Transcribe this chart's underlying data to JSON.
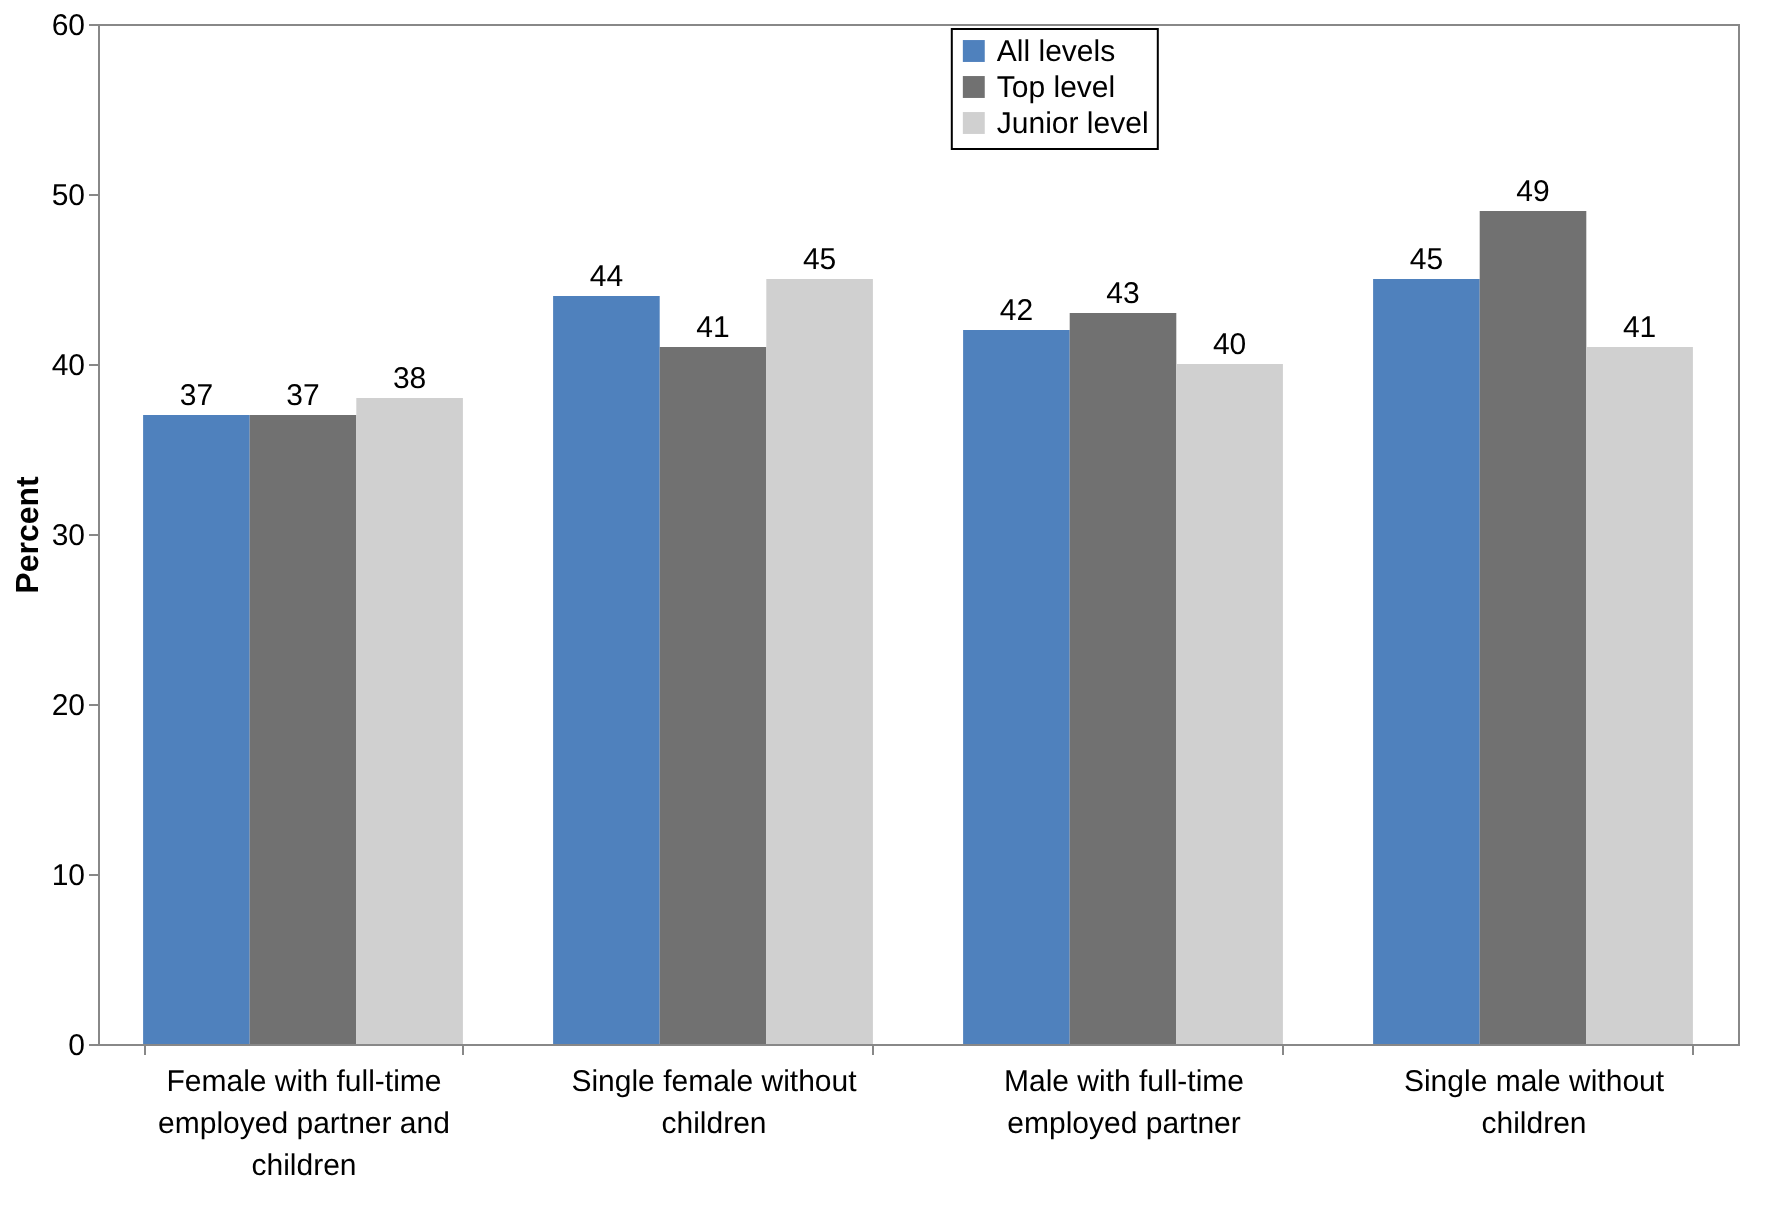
{
  "chart_data": {
    "type": "bar",
    "ylabel": "Percent",
    "categories": [
      "Female with full-time employed partner and children",
      "Single female without children",
      "Male with full-time employed partner",
      "Single male without children"
    ],
    "series": [
      {
        "name": "All levels",
        "color": "#4f81bd",
        "values": [
          37,
          44,
          42,
          45
        ]
      },
      {
        "name": "Top level",
        "color": "#717171",
        "values": [
          37,
          41,
          43,
          49
        ]
      },
      {
        "name": "Junior level",
        "color": "#d0d0d0",
        "values": [
          38,
          45,
          40,
          41
        ]
      }
    ],
    "ylim": [
      0,
      60
    ],
    "yticks": [
      0,
      10,
      20,
      30,
      40,
      50,
      60
    ],
    "data_labels": true,
    "grid": false,
    "legend": "top"
  }
}
